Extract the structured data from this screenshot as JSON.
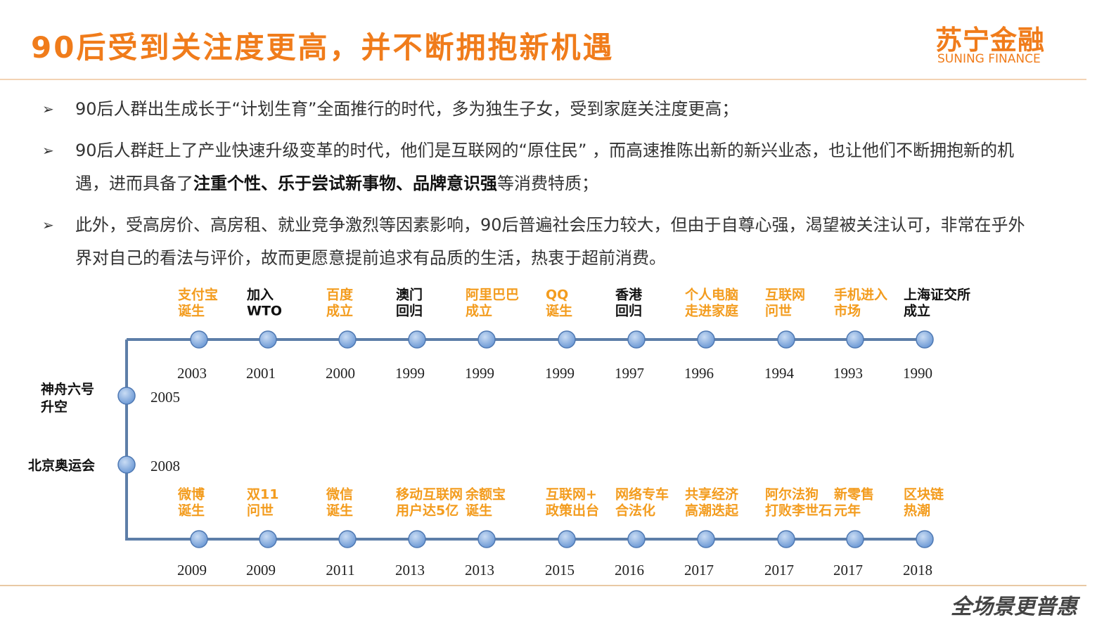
{
  "header": {
    "title": "90后受到关注度更高，并不断拥抱新机遇",
    "logo": "苏宁金融",
    "logo_sub": "SUNING FINANCE"
  },
  "bullets": [
    [
      {
        "text": "90后人群出生成长于“计划生育”全面推行的时代，多为独生子女，受到家庭关注度更高；",
        "bold": false
      }
    ],
    [
      {
        "text": "90后人群赶上了产业快速升级变革的时代，他们是互联网的“原住民” ，而高速推陈出新的新兴业态，也让他们不断拥抱新的机遇，进而具备了",
        "bold": false
      },
      {
        "text": "注重个性、乐于尝试新事物、品牌意识强",
        "bold": true
      },
      {
        "text": "等消费特质；",
        "bold": false
      }
    ],
    [
      {
        "text": "此外，受高房价、高房租、就业竞争激烈等因素影响，90后普遍社会压力较大，但由于自尊心强，渴望被关注认可，非常在乎外界对自己的看法与评价，故而更愿意提前追求有品质的生活，热衷于超前消费。",
        "bold": false
      }
    ]
  ],
  "timeline": {
    "top": [
      {
        "label": [
          "支付宝",
          "诞生"
        ],
        "year": 2003,
        "color": "#f39c1e"
      },
      {
        "label": [
          "加入",
          "WTO"
        ],
        "year": 2001,
        "color": "#111111"
      },
      {
        "label": [
          "百度",
          "成立"
        ],
        "year": 2000,
        "color": "#f39c1e"
      },
      {
        "label": [
          "澳门",
          "回归"
        ],
        "year": 1999,
        "color": "#111111"
      },
      {
        "label": [
          "阿里巴巴",
          "成立"
        ],
        "year": 1999,
        "color": "#f39c1e"
      },
      {
        "label": [
          "QQ",
          "诞生"
        ],
        "year": 1999,
        "color": "#f39c1e"
      },
      {
        "label": [
          "香港",
          "回归"
        ],
        "year": 1997,
        "color": "#111111"
      },
      {
        "label": [
          "个人电脑",
          "走进家庭"
        ],
        "year": 1996,
        "color": "#f39c1e"
      },
      {
        "label": [
          "互联网",
          "问世"
        ],
        "year": 1994,
        "color": "#f39c1e"
      },
      {
        "label": [
          "手机进入",
          "市场"
        ],
        "year": 1993,
        "color": "#f39c1e"
      },
      {
        "label": [
          "上海证交所",
          "成立"
        ],
        "year": 1990,
        "color": "#111111"
      }
    ],
    "left": [
      {
        "label": [
          "神舟六号",
          "升空"
        ],
        "year": 2005,
        "color": "#111111"
      },
      {
        "label": [
          "北京奥运会"
        ],
        "year": 2008,
        "color": "#111111"
      }
    ],
    "bottom": [
      {
        "label": [
          "微博",
          "诞生"
        ],
        "year": 2009,
        "color": "#f39c1e"
      },
      {
        "label": [
          "双11",
          "问世"
        ],
        "year": 2009,
        "color": "#f39c1e"
      },
      {
        "label": [
          "微信",
          "诞生"
        ],
        "year": 2011,
        "color": "#f39c1e"
      },
      {
        "label": [
          "移动互联网",
          "用户达5亿"
        ],
        "year": 2013,
        "color": "#f39c1e"
      },
      {
        "label": [
          "余额宝",
          "诞生"
        ],
        "year": 2013,
        "color": "#f39c1e"
      },
      {
        "label": [
          "互联网+",
          "政策出台"
        ],
        "year": 2015,
        "color": "#f39c1e"
      },
      {
        "label": [
          "网络专车",
          "合法化"
        ],
        "year": 2016,
        "color": "#f39c1e"
      },
      {
        "label": [
          "共享经济",
          "高潮迭起"
        ],
        "year": 2017,
        "color": "#f39c1e"
      },
      {
        "label": [
          "阿尔法狗",
          "打败李世石"
        ],
        "year": 2017,
        "color": "#f39c1e"
      },
      {
        "label": [
          "新零售",
          "元年"
        ],
        "year": 2017,
        "color": "#f39c1e"
      },
      {
        "label": [
          "区块链",
          "热潮"
        ],
        "year": 2018,
        "color": "#f39c1e"
      }
    ]
  },
  "footer": {
    "slogan": "全场景更普惠"
  }
}
